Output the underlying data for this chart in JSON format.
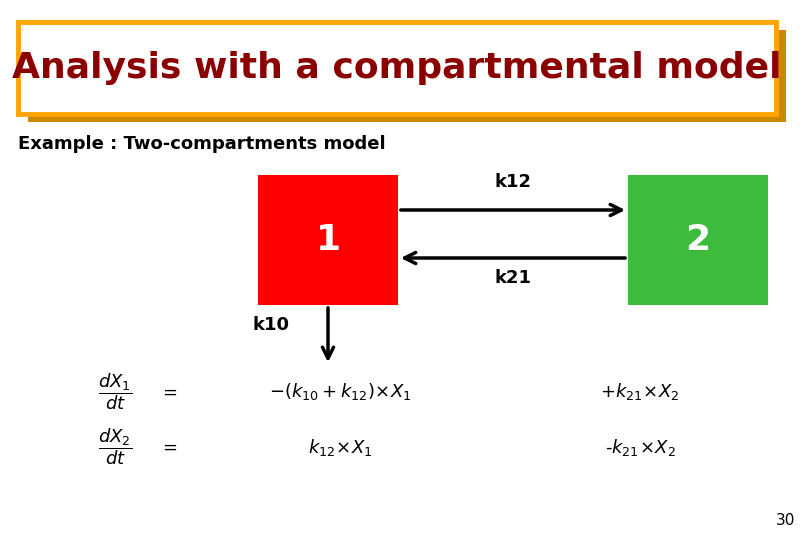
{
  "title": "Analysis with a compartmental model",
  "title_color": "#8B0000",
  "title_fontsize": 26,
  "title_box_color": "#FFA500",
  "title_box_shadow_color": "#CC8800",
  "bg_color": "#FFFFFF",
  "subtitle": "Example : Two-compartments model",
  "subtitle_fontsize": 13,
  "box1_color": "#FF0000",
  "box2_color": "#3CBB3C",
  "box1_label": "1",
  "box2_label": "2",
  "k12_label": "k12",
  "k21_label": "k21",
  "k10_label": "k10",
  "eq1_left": "$\\dfrac{dX_1}{dt}$",
  "eq1_equals": "$=$",
  "eq1_mid": "$-(k_{10}+k_{12})\\!\\times\\! X_1$",
  "eq1_right": "$+k_{21}\\!\\times\\! X_2$",
  "eq2_left": "$\\dfrac{dX_2}{dt}$",
  "eq2_equals": "$=$",
  "eq2_mid": "$k_{12}\\!\\times\\! X_1$",
  "eq2_right": "$\\text{-}k_{21}\\!\\times\\! X_2$",
  "page_number": "30",
  "figwidth": 8.1,
  "figheight": 5.4,
  "dpi": 100
}
